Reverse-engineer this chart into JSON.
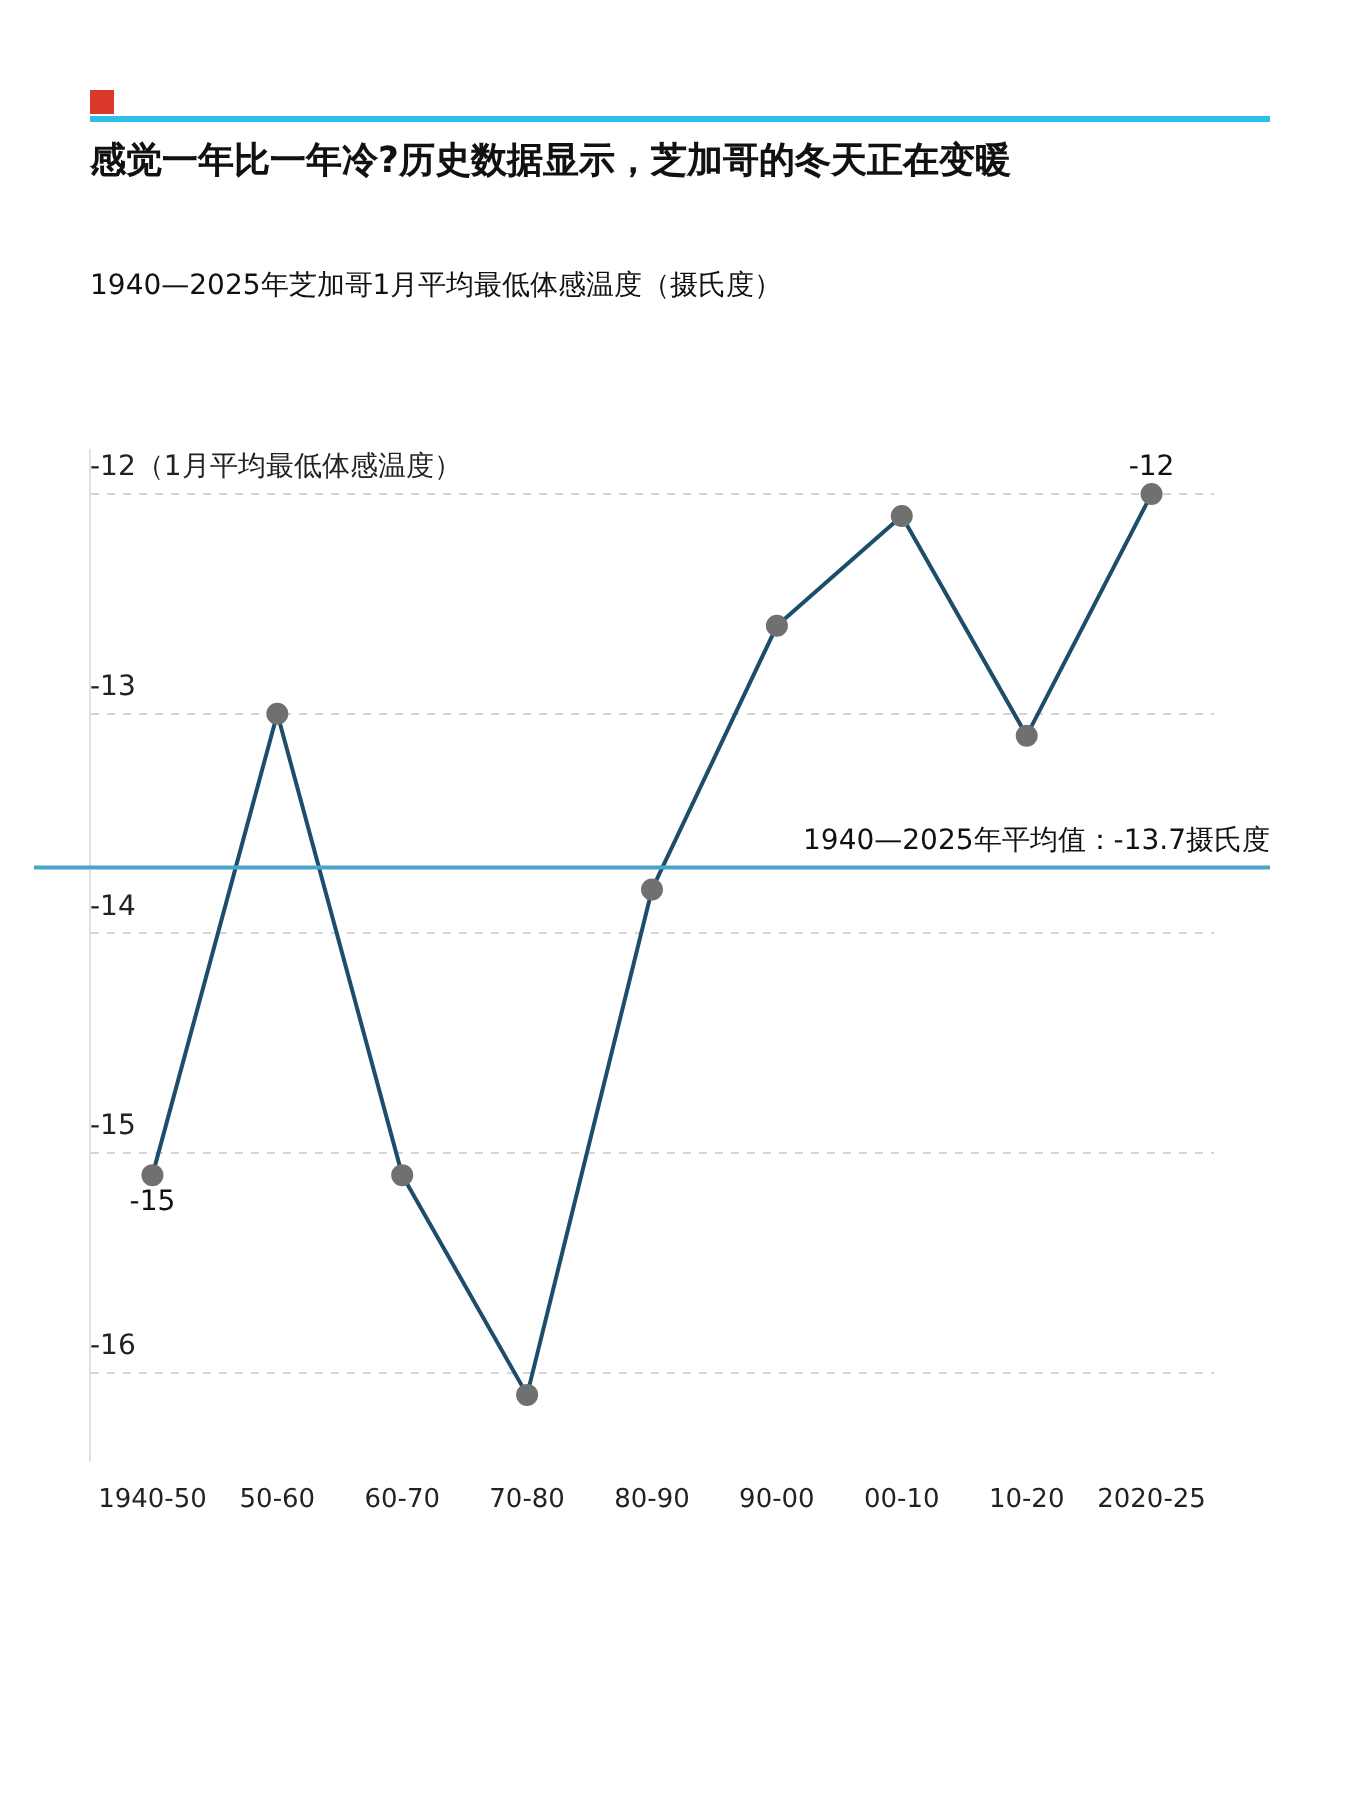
{
  "chart_data": {
    "type": "line",
    "title": "感觉一年比一年冷?历史数据显示，芝加哥的冬天正在变暖",
    "subtitle": "1940—2025年芝加哥1月平均最低体感温度（摄氏度）",
    "categories": [
      "1940-50",
      "50-60",
      "60-70",
      "70-80",
      "80-90",
      "90-00",
      "00-10",
      "10-20",
      "2020-25"
    ],
    "series": [
      {
        "color": "#1c4e6b",
        "values": [
          -15.1,
          -13.0,
          -15.1,
          -16.1,
          -13.8,
          -12.6,
          -12.1,
          -13.1,
          -12.0
        ],
        "value_labels": [
          "-15",
          null,
          null,
          null,
          null,
          null,
          null,
          null,
          "-12"
        ]
      }
    ],
    "yticks": [
      {
        "value": -12,
        "label": "-12（1月平均最低体感温度）"
      },
      -13,
      -14,
      -15,
      -16
    ],
    "ylim": [
      -16.4,
      -11.8
    ],
    "grid": "y",
    "marker": "circle",
    "line_style": "solid",
    "ref_lines": [
      {
        "axis": "y",
        "value": -13.7,
        "label": "1940—2025年平均值：-13.7摄氏度",
        "color": "#4aa3c8"
      }
    ]
  }
}
